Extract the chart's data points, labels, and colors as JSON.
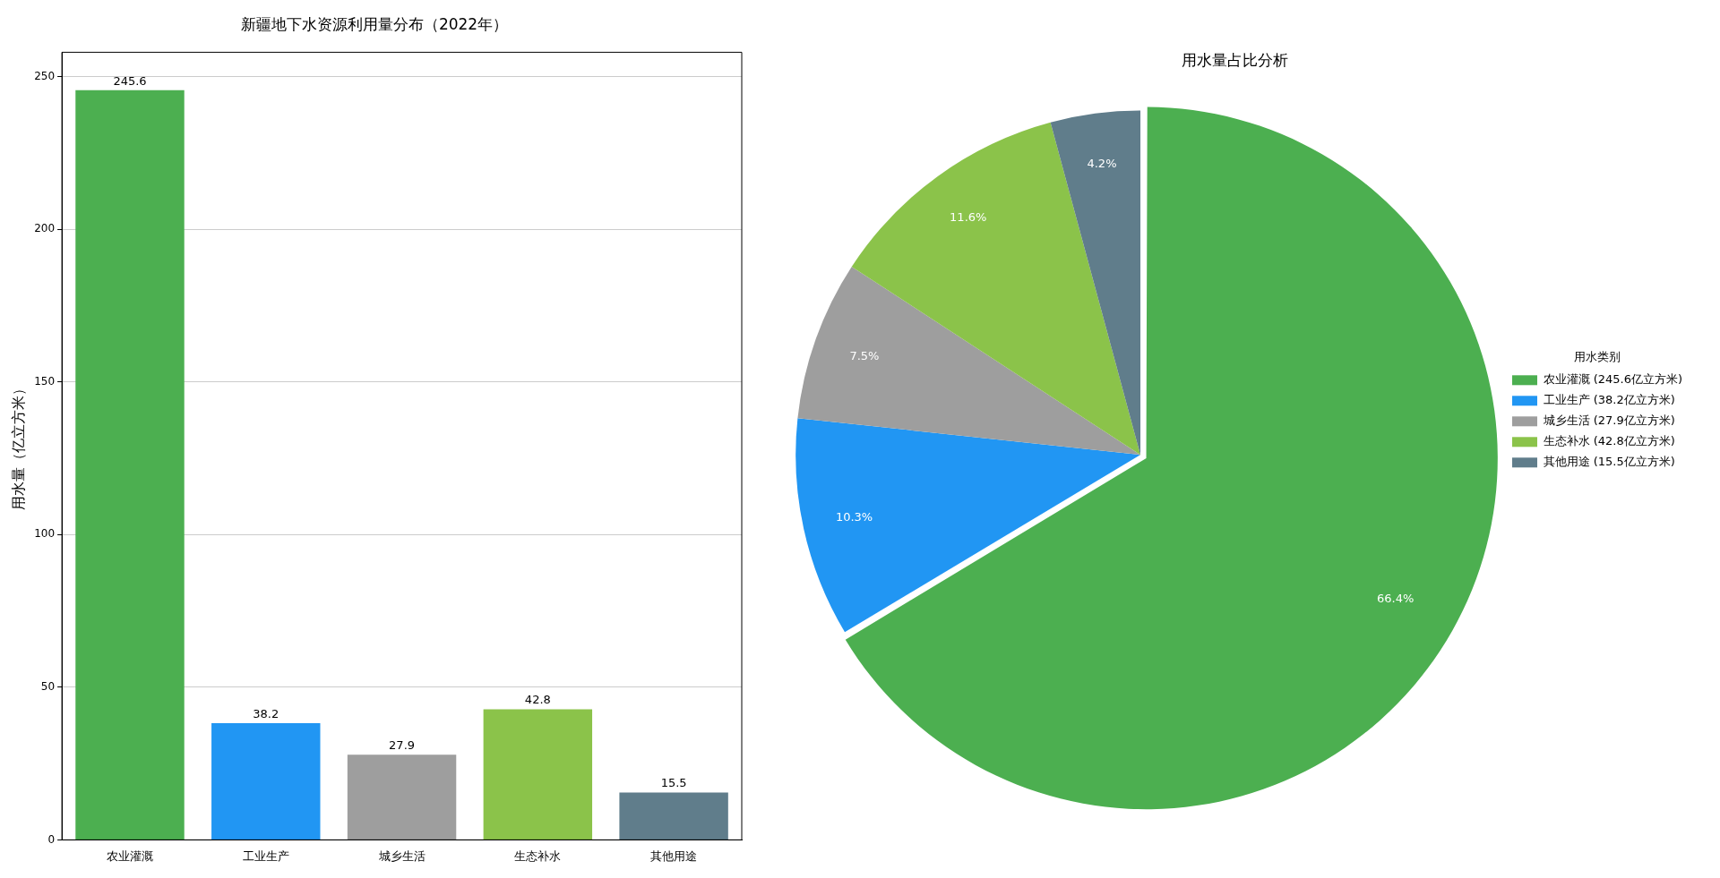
{
  "chart_data": [
    {
      "type": "bar",
      "title": "新疆地下水资源利用量分布（2022年）",
      "ylabel": "用水量（亿立方米）",
      "categories": [
        "农业灌溉",
        "工业生产",
        "城乡生活",
        "生态补水",
        "其他用途"
      ],
      "values": [
        245.6,
        38.2,
        27.9,
        42.8,
        15.5
      ],
      "colors": [
        "#4caf50",
        "#2196f3",
        "#9e9e9e",
        "#8bc34a",
        "#607d8b"
      ],
      "ylim": [
        0,
        258
      ],
      "yticks": [
        0,
        50,
        100,
        150,
        200,
        250
      ],
      "grid": "y",
      "data_labels": true,
      "legend": false
    },
    {
      "type": "pie",
      "title": "用水量占比分析",
      "legend_title": "用水类别",
      "legend": "right",
      "categories": [
        "农业灌溉 (245.6亿立方米)",
        "工业生产 (38.2亿立方米)",
        "城乡生活 (27.9亿立方米)",
        "生态补水 (42.8亿立方米)",
        "其他用途 (15.5亿立方米)"
      ],
      "values": [
        66.4,
        10.3,
        7.5,
        11.6,
        4.2
      ],
      "colors": [
        "#4caf50",
        "#2196f3",
        "#9e9e9e",
        "#8bc34a",
        "#607d8b"
      ],
      "value_labels": [
        "66.4%",
        "10.3%",
        "7.5%",
        "11.6%",
        "4.2%"
      ]
    }
  ]
}
